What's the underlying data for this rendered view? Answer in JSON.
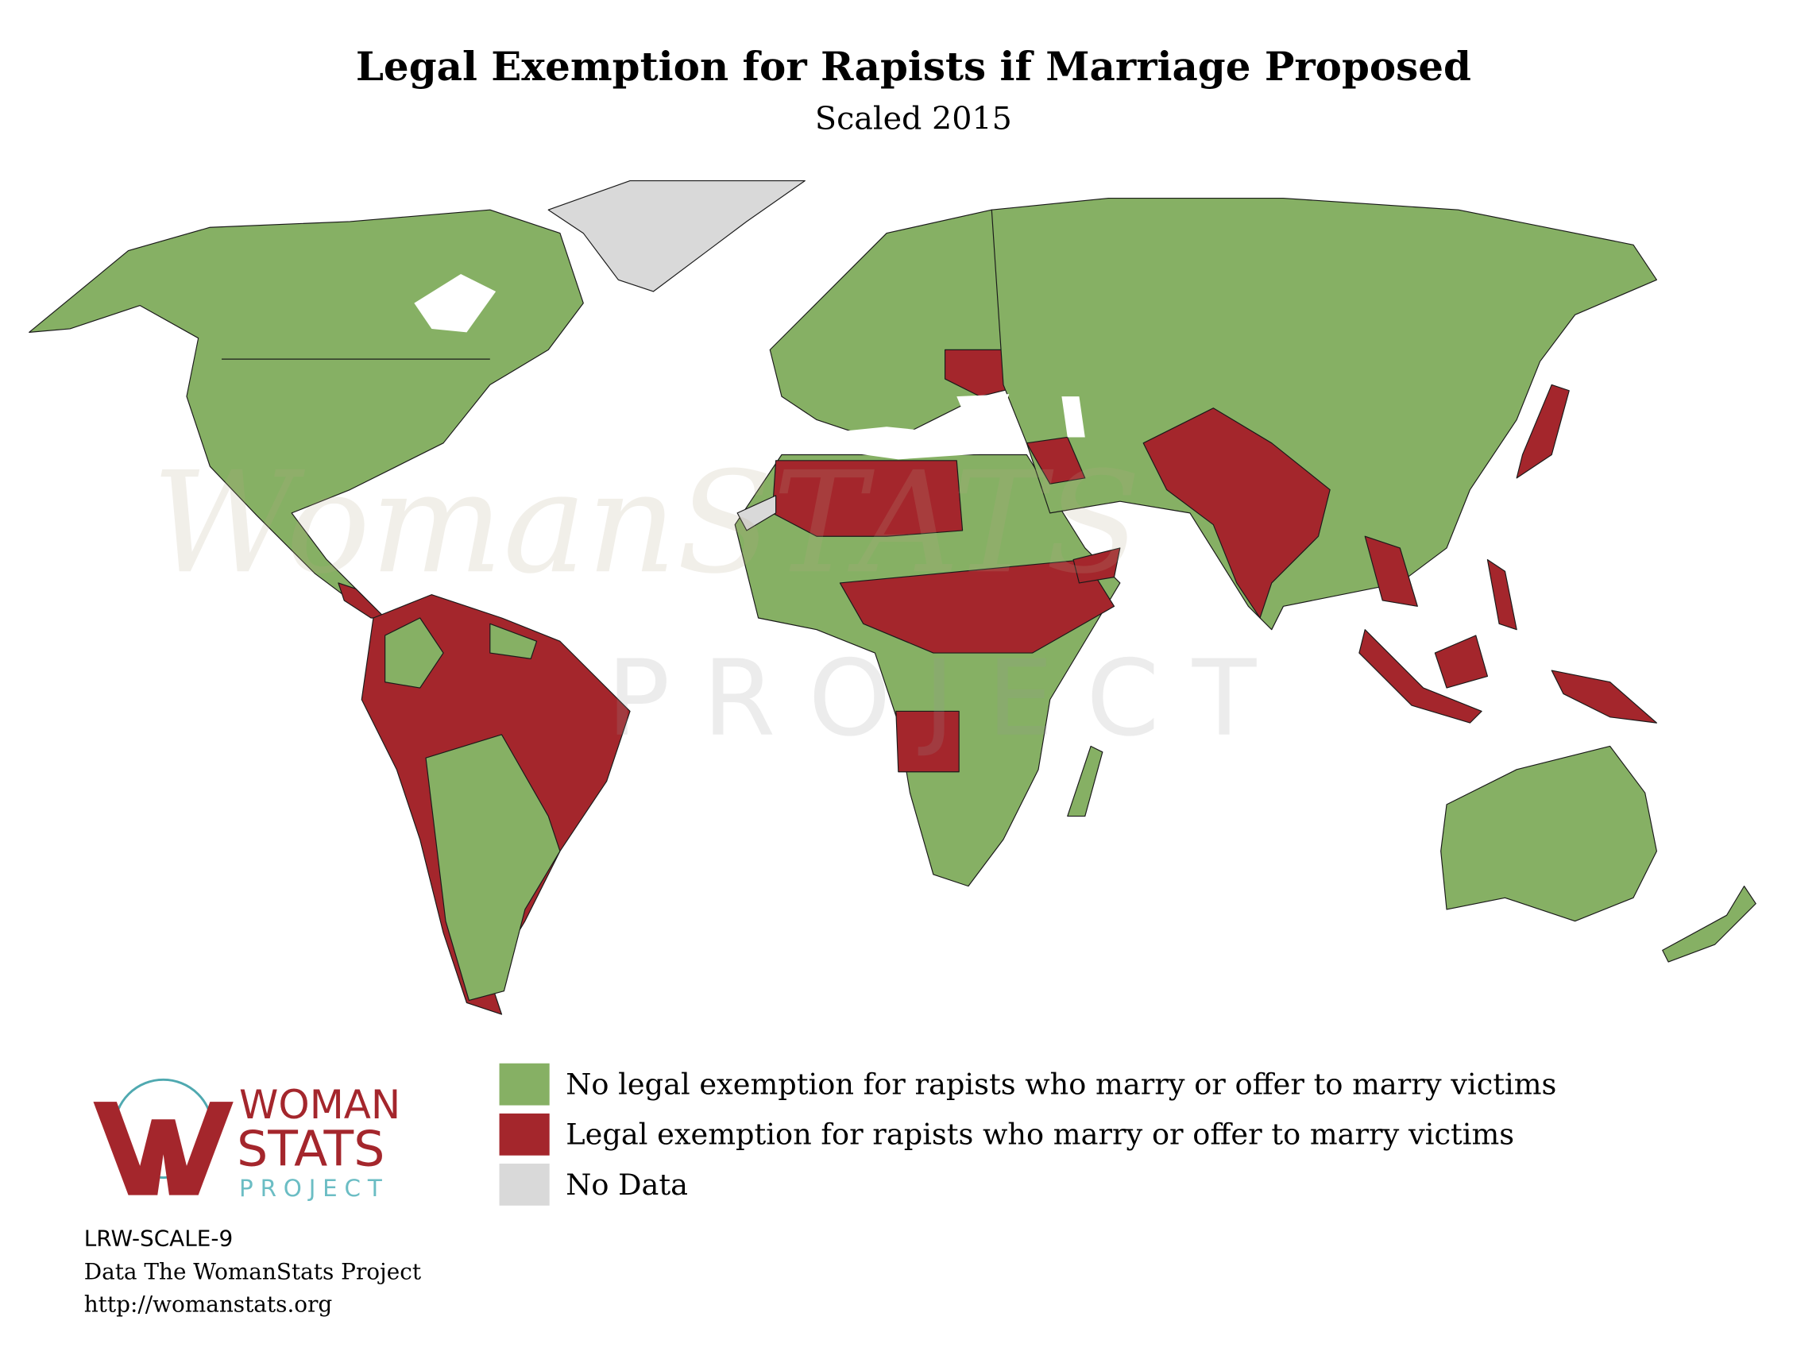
{
  "header": {
    "title": "Legal Exemption for Rapists if Marriage Proposed",
    "subtitle": "Scaled 2015"
  },
  "legend": {
    "items": [
      {
        "label": "No legal exemption for rapists who marry or offer to marry victims",
        "color": "#86b064"
      },
      {
        "label": "Legal exemption for rapists who marry or offer to marry victims",
        "color": "#a4262c"
      },
      {
        "label": "No Data",
        "color": "#d9d9d9"
      }
    ]
  },
  "watermark": {
    "line1": "WomanSTATS",
    "line2": "PROJECT"
  },
  "logo": {
    "line1": "WOMAN",
    "line2": "STATS",
    "line3": "PROJECT"
  },
  "footer": {
    "lines": [
      "LRW-SCALE-9",
      "Data The WomanStats Project",
      "http://womanstats.org"
    ]
  }
}
